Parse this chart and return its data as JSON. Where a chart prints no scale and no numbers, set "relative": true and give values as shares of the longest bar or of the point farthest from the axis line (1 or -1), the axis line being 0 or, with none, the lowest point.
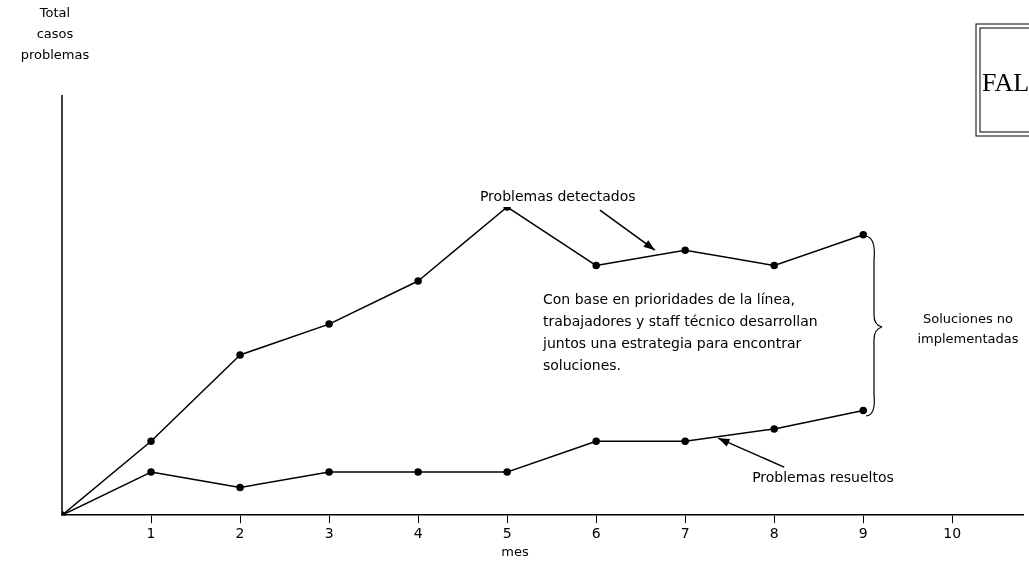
{
  "chart_data": {
    "type": "line",
    "relative": true,
    "xlabel": "mes",
    "x": [
      0,
      1,
      2,
      3,
      4,
      5,
      6,
      7,
      8,
      9
    ],
    "xlim": [
      0,
      10.8
    ],
    "xticks": [
      1,
      2,
      3,
      4,
      5,
      6,
      7,
      8,
      9,
      10
    ],
    "series": [
      {
        "color": "#000000",
        "values": [
          0,
          0.24,
          0.52,
          0.62,
          0.76,
          1,
          0.81,
          0.86,
          0.81,
          0.91
        ]
      },
      {
        "color": "#000000",
        "values": [
          0,
          0.14,
          0.09,
          0.14,
          0.14,
          0.14,
          0.24,
          0.24,
          0.28,
          0.34
        ]
      }
    ],
    "annotations": [
      "Con base en prioridades de la línea, trabajadores y staff técnico desarrollan juntos una estrategia para encontrar soluciones.",
      "Soluciones no implementadas",
      "FAL",
      "Total casos problemas",
      {
        "text": "Problemas detectados",
        "x": 6.66,
        "y": 0.86
      },
      {
        "text": "Problemas resueltos",
        "x": 7.37,
        "y": 0.25
      }
    ],
    "marker": "circle",
    "line_style": "solid",
    "grid": false,
    "legend": false
  }
}
